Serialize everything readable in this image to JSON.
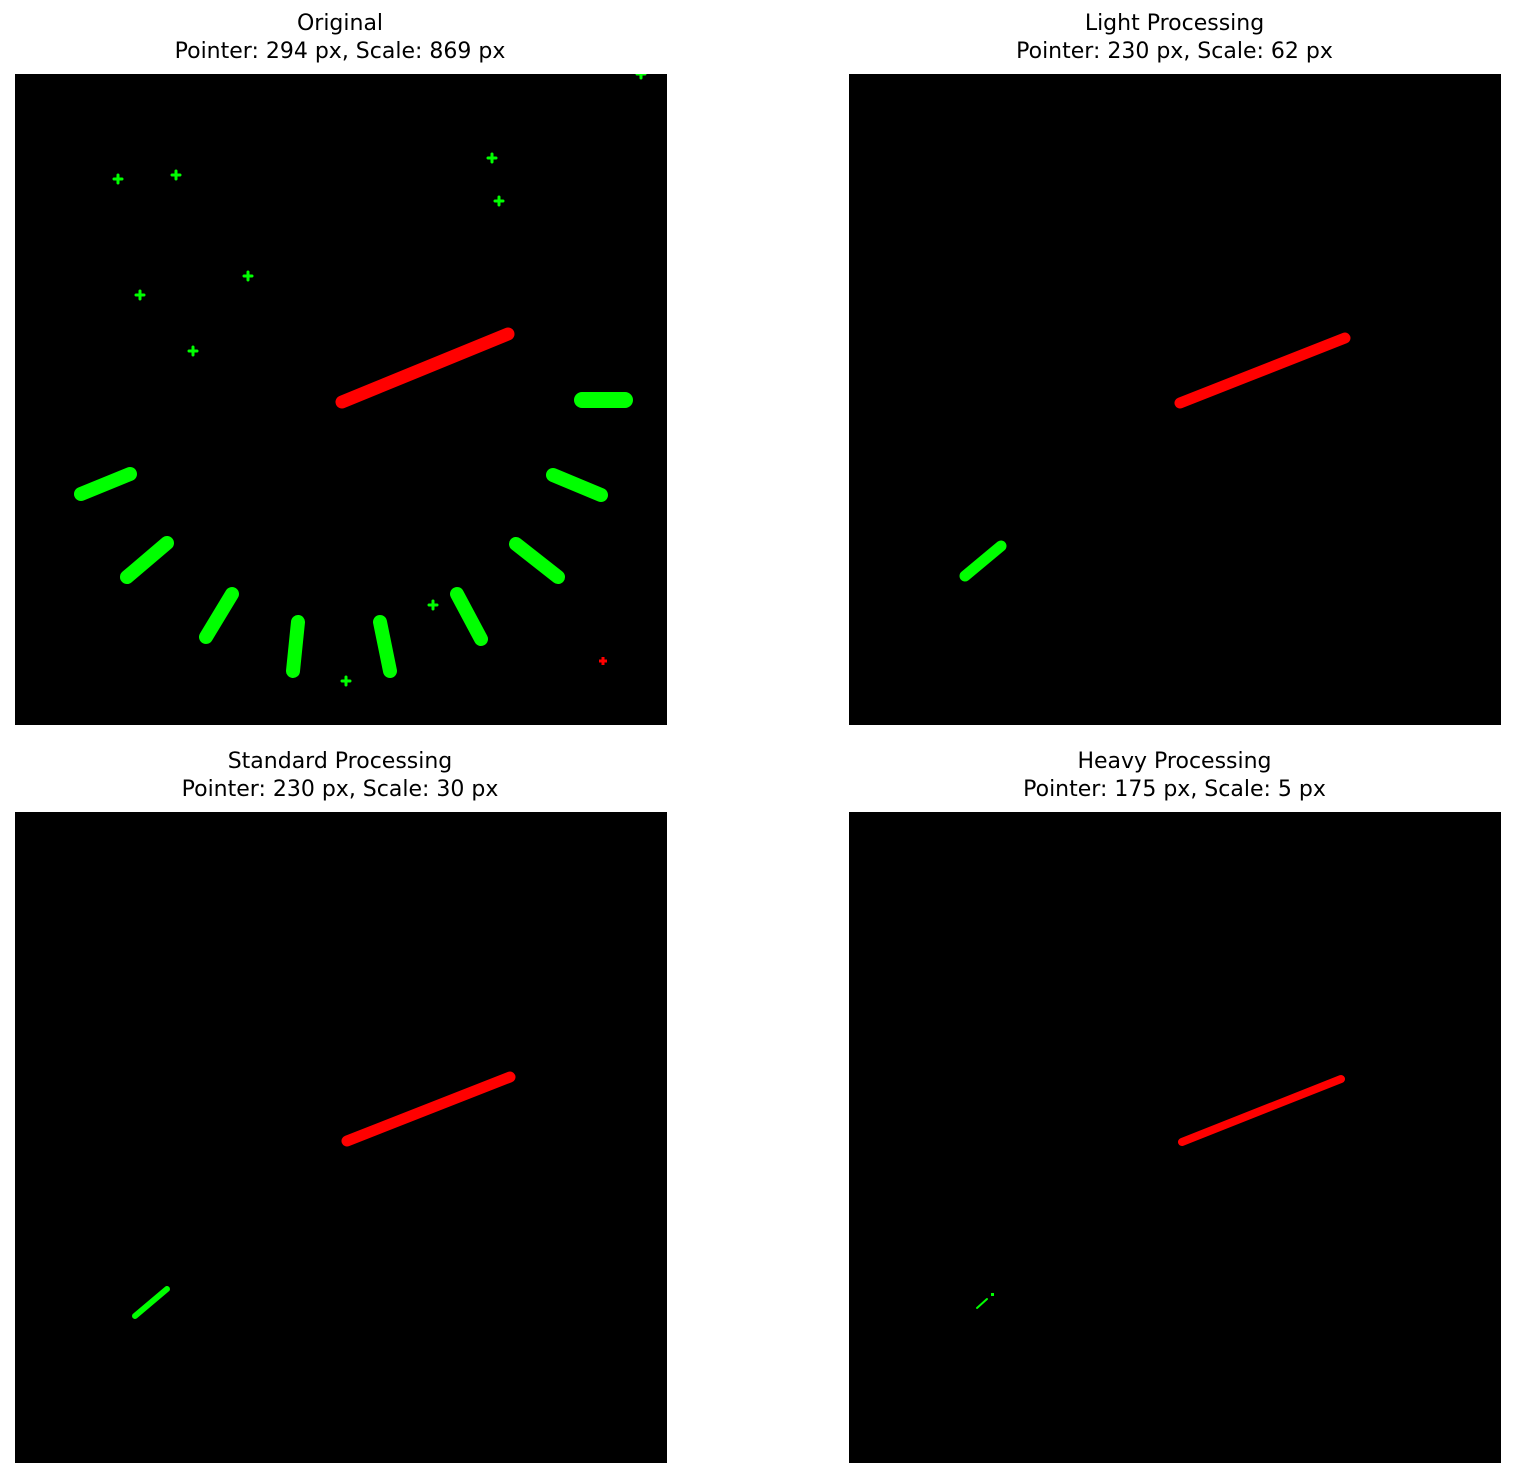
{
  "panels": [
    {
      "title": "Original",
      "subtitle": "Pointer: 294 px, Scale: 869 px"
    },
    {
      "title": "Light Processing",
      "subtitle": "Pointer: 230 px, Scale: 62 px"
    },
    {
      "title": "Standard Processing",
      "subtitle": "Pointer: 230 px, Scale: 30 px"
    },
    {
      "title": "Heavy Processing",
      "subtitle": "Pointer: 175 px, Scale: 5 px"
    }
  ],
  "colors": {
    "background": "#000000",
    "scale_marks": "#00ff00",
    "pointer": "#ff0000"
  }
}
